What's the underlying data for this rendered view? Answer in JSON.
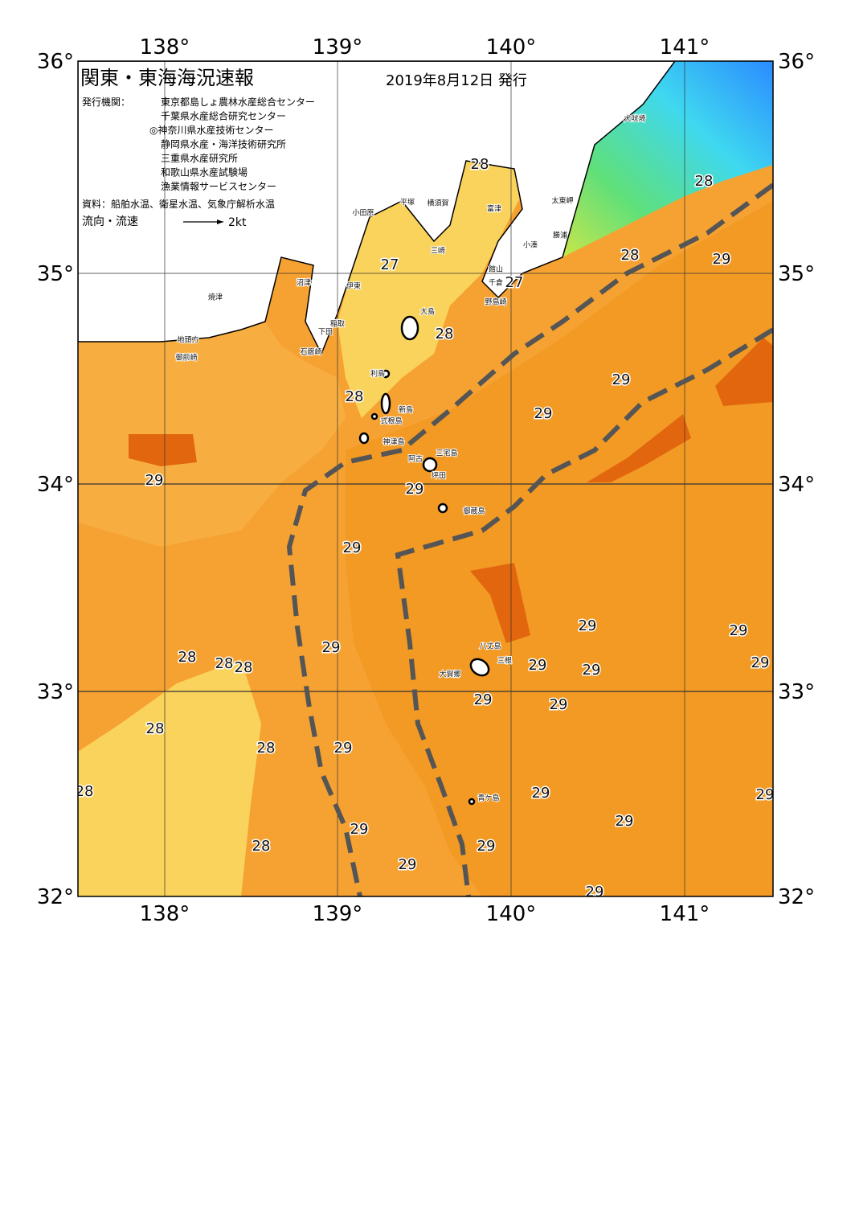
{
  "header": {
    "title": "関東・東海海況速報",
    "date": "2019年8月12日 発行"
  },
  "publisher_label": "発行機関：",
  "publishers": [
    "東京都島しょ農林水産総合センター",
    "千葉県水産総合研究センター",
    "◎神奈川県水産技術センター",
    "静岡県水産・海洋技術研究所",
    "三重県水産研究所",
    "和歌山県水産試験場",
    "漁業情報サービスセンター"
  ],
  "source": "資料：船舶水温、衛星水温、気象庁解析水温",
  "flow_label": "流向・流速",
  "flow_scale": "2kt",
  "latitude_labels": [
    "36°",
    "35°",
    "34°",
    "33°",
    "32°"
  ],
  "longitude_labels": [
    "138°",
    "139°",
    "140°",
    "141°"
  ],
  "place_names": [
    "犬吠埼",
    "太東岬",
    "小湊",
    "勝浦",
    "館山",
    "千倉",
    "野島崎",
    "富津",
    "横須賀",
    "平塚",
    "三崎",
    "小田原",
    "大島",
    "伊東",
    "沼津",
    "焼津",
    "御前崎",
    "地頭方",
    "稲取",
    "下田",
    "石廊崎",
    "利島",
    "新島",
    "式根島",
    "神津島",
    "三宅島",
    "阿古",
    "坪田",
    "御蔵島",
    "八丈島",
    "三根",
    "大賀郷",
    "青ケ島"
  ],
  "temperature_labels": [
    "28",
    "28",
    "27",
    "28",
    "29",
    "27",
    "28",
    "29",
    "28",
    "29",
    "29",
    "29",
    "29",
    "29",
    "29",
    "28",
    "28",
    "28",
    "29",
    "29",
    "29",
    "29",
    "29",
    "29",
    "28",
    "28",
    "29",
    "28",
    "29",
    "29",
    "29",
    "29",
    "28",
    "29",
    "29",
    "29"
  ]
}
